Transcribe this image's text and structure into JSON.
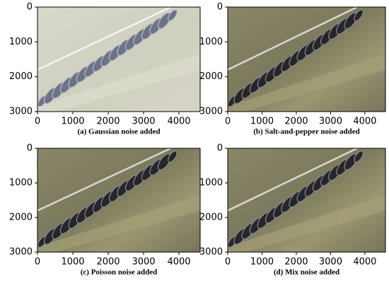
{
  "chart_data": [
    {
      "type": "image",
      "caption": "(a) Gaussian noise added",
      "xlim": [
        0,
        4600
      ],
      "ylim": [
        3000,
        0
      ],
      "xticks": [
        0,
        1000,
        2000,
        3000,
        4000
      ],
      "yticks": [
        0,
        1000,
        2000,
        3000
      ]
    },
    {
      "type": "image",
      "caption": "(b) Salt-and-pepper noise added",
      "xlim": [
        0,
        4600
      ],
      "ylim": [
        3000,
        0
      ],
      "xticks": [
        0,
        1000,
        2000,
        3000,
        4000
      ],
      "yticks": [
        0,
        1000,
        2000,
        3000
      ]
    },
    {
      "type": "image",
      "caption": "(c) Poisson noise added",
      "xlim": [
        0,
        4600
      ],
      "ylim": [
        3000,
        0
      ],
      "xticks": [
        0,
        1000,
        2000,
        3000,
        4000
      ],
      "yticks": [
        0,
        1000,
        2000,
        3000
      ]
    },
    {
      "type": "image",
      "caption": "(d) Mix noise added",
      "xlim": [
        0,
        4600
      ],
      "ylim": [
        3000,
        0
      ],
      "xticks": [
        0,
        1000,
        2000,
        3000,
        4000
      ],
      "yticks": [
        0,
        1000,
        2000,
        3000
      ]
    }
  ]
}
